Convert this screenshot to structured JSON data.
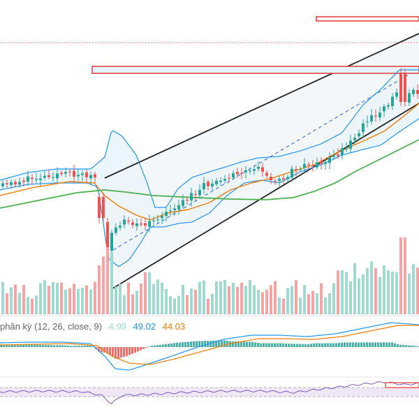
{
  "colors": {
    "up": "#26a69a",
    "down": "#ef5350",
    "up_volume": "#9fd9cf",
    "down_volume": "#f5a4a4",
    "bollinger": "#2196f3",
    "bollinger_fill": "#e3f2fd",
    "ma_fast": "#f57c00",
    "ma_slow": "#4caf50",
    "channel": "#222222",
    "channel_fill": "#eef3f8",
    "channel_mid": "#2962ff",
    "level_box": "#e53935",
    "level_box_fill": "#e3f2fd",
    "macd_line": "#2196f3",
    "signal_line": "#f57c00",
    "rsi_line": "#7e57c2",
    "rsi_band": "#ede7f6"
  },
  "macd_legend": {
    "name": "phân kỳ (12, 26, close, 9)",
    "histogram": "4.99",
    "macd": "49.02",
    "signal": "44.03"
  },
  "chart_data": {
    "type": "candlestick",
    "panes": [
      "price",
      "volume",
      "macd",
      "rsi"
    ],
    "indicators": [
      "bollinger bands",
      "moving average (fast)",
      "moving average (slow)",
      "rising channel",
      "MACD (12, 26, close, 9)",
      "RSI"
    ],
    "price_trend": "sideways range, sharp gap down, then steady uptrend inside a rising channel",
    "macd_values": {
      "histogram": 4.99,
      "macd": 49.02,
      "signal": 44.03
    },
    "grid": false,
    "legend": "macd pane top-left"
  }
}
